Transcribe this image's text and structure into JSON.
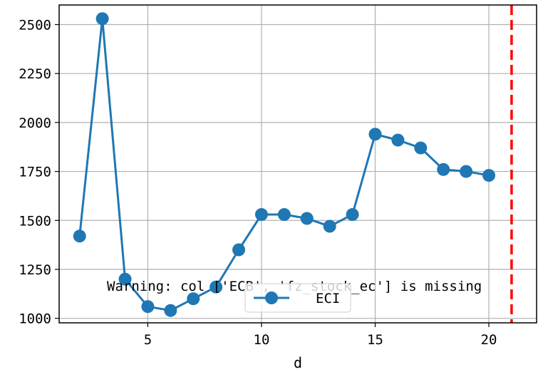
{
  "chart_data": {
    "type": "line",
    "x": [
      2,
      3,
      4,
      5,
      6,
      7,
      8,
      9,
      10,
      11,
      12,
      13,
      14,
      15,
      16,
      17,
      18,
      19,
      20
    ],
    "series": [
      {
        "name": "ECI",
        "values": [
          1420,
          2530,
          1200,
          1060,
          1040,
          1100,
          1160,
          1350,
          1530,
          1530,
          1510,
          1470,
          1530,
          1940,
          1910,
          1870,
          1760,
          1750,
          1730
        ],
        "color": "#1f77b4"
      }
    ],
    "xlabel": "d",
    "ylabel": "",
    "xlim": [
      1.1,
      22.1
    ],
    "ylim": [
      977,
      2600
    ],
    "xticks": [
      5,
      10,
      15,
      20
    ],
    "yticks": [
      1000,
      1250,
      1500,
      1750,
      2000,
      2250,
      2500
    ],
    "vline": {
      "x": 21,
      "color": "#ff0000",
      "style": "dashed"
    },
    "annotation": "Warning: col ['ECB', 'fz_stock_ec'] is missing",
    "grid": true,
    "legend_position": "lower-center"
  }
}
